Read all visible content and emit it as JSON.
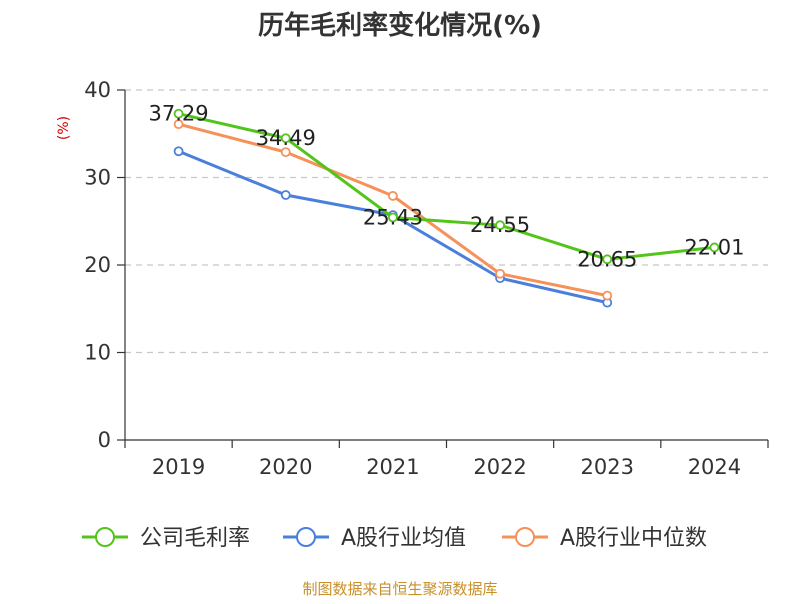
{
  "chart_data": {
    "type": "line",
    "title": "历年毛利率变化情况(%)",
    "ylabel": "(%)",
    "xlabel": "",
    "categories": [
      "2019",
      "2020",
      "2021",
      "2022",
      "2023",
      "2024"
    ],
    "yticks": [
      0,
      10,
      20,
      30,
      40
    ],
    "ylim": [
      0,
      40
    ],
    "grid": true,
    "legend_position": "bottom",
    "series": [
      {
        "name": "公司毛利率",
        "color": "#52c41a",
        "values": [
          37.29,
          34.49,
          25.43,
          24.55,
          20.65,
          22.01
        ],
        "labels": [
          "37.29",
          "34.49",
          "25.43",
          "24.55",
          "20.65",
          "22.01"
        ]
      },
      {
        "name": "A股行业均值",
        "color": "#4a7fdb",
        "values": [
          33.0,
          28.0,
          25.7,
          18.5,
          15.7,
          null
        ]
      },
      {
        "name": "A股行业中位数",
        "color": "#f59159",
        "values": [
          36.1,
          32.9,
          27.9,
          19.0,
          16.5,
          null
        ]
      }
    ],
    "source": "制图数据来自恒生聚源数据库"
  },
  "colors": {
    "title": "#333333",
    "axis": "#333333",
    "grid": "#c8c8c8",
    "ylabel": "#d40000",
    "source": "#c8902a"
  }
}
